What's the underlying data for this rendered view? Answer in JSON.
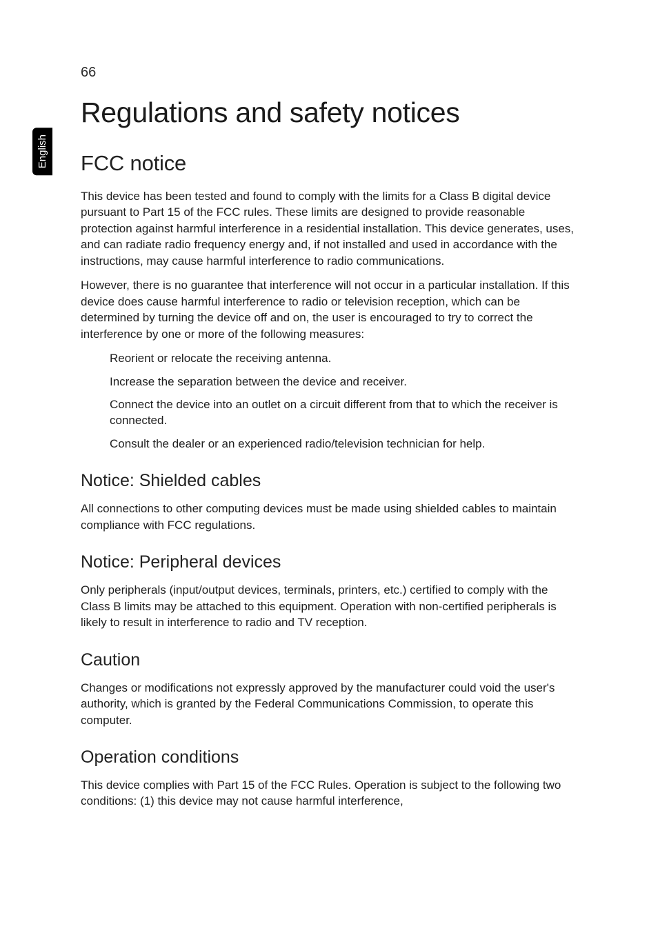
{
  "page": {
    "number": "66",
    "language_tab": "English",
    "background_color": "#ffffff",
    "text_color": "#1f1f1f",
    "tab_bg": "#000000",
    "tab_fg": "#ffffff"
  },
  "title": "Regulations and safety notices",
  "sections": [
    {
      "level": "h2",
      "heading": "FCC notice",
      "paragraphs": [
        "This device has been tested and found to comply with the limits for a Class B digital device pursuant to Part 15 of the FCC rules. These limits are designed to provide reasonable protection against harmful interference in a residential installation. This device generates, uses, and can radiate radio frequency energy and, if not installed and used in accordance with the instructions, may cause harmful interference to radio communications.",
        "However, there is no guarantee that interference will not occur in a particular installation. If this device does cause harmful interference to radio or television reception, which can be determined by turning the device off and on, the user is encouraged to try to correct the interference by one or more of the following measures:"
      ],
      "list": [
        "Reorient or relocate the receiving antenna.",
        "Increase the separation between the device and receiver.",
        "Connect the device into an outlet on a circuit different from that to which the receiver is connected.",
        "Consult the dealer or an experienced radio/television technician for help."
      ]
    },
    {
      "level": "h3",
      "heading": "Notice: Shielded cables",
      "paragraphs": [
        "All connections to other computing devices must be made using shielded cables to maintain compliance with FCC regulations."
      ]
    },
    {
      "level": "h3",
      "heading": "Notice: Peripheral devices",
      "paragraphs": [
        "Only peripherals (input/output devices, terminals, printers, etc.) certified to comply with the Class B limits may be attached to this equipment. Operation with non-certified peripherals is likely to result in interference to radio and TV reception."
      ]
    },
    {
      "level": "h3",
      "heading": "Caution",
      "paragraphs": [
        "Changes or modifications not expressly approved by the manufacturer could void the user's authority, which is granted by the Federal Communications Commission, to operate this computer."
      ]
    },
    {
      "level": "h3",
      "heading": "Operation conditions",
      "paragraphs": [
        "This device complies with Part 15 of the FCC Rules. Operation is subject to the following two conditions: (1) this device may not cause harmful interference,"
      ]
    }
  ],
  "typography": {
    "h1_fontsize": 41,
    "h2_fontsize": 31,
    "h3_fontsize": 25,
    "body_fontsize": 17,
    "pagenum_fontsize": 20,
    "font_family": "Segoe UI, Lucida Sans, Tahoma, Arial, sans-serif"
  }
}
